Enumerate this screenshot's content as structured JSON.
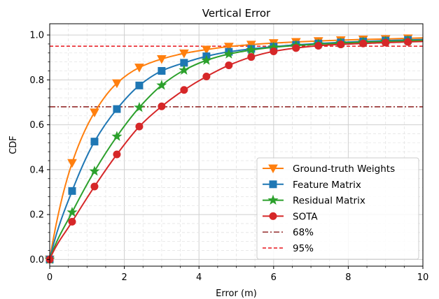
{
  "chart_data": {
    "type": "line",
    "title": "Vertical Error",
    "xlabel": "Error (m)",
    "ylabel": "CDF",
    "xlim": [
      0,
      10
    ],
    "ylim": [
      -0.03,
      1.05
    ],
    "x_ticks": [
      0,
      2,
      4,
      6,
      8,
      10
    ],
    "y_ticks": [
      0.0,
      0.2,
      0.4,
      0.6,
      0.8,
      1.0
    ],
    "x_tick_labels": [
      "0",
      "2",
      "4",
      "6",
      "8",
      "10"
    ],
    "y_tick_labels": [
      "0.0",
      "0.2",
      "0.4",
      "0.6",
      "0.8",
      "1.0"
    ],
    "grid": true,
    "legend_position": "lower-right",
    "series": [
      {
        "name": "Ground-truth Weights",
        "color": "#ff7f0e",
        "marker": "triangle-down",
        "x": [
          0,
          0.6,
          1.2,
          1.8,
          2.4,
          3.0,
          3.6,
          4.2,
          4.8,
          5.4,
          6.0,
          6.6,
          7.2,
          7.8,
          8.4,
          9.0,
          9.6
        ],
        "y": [
          0.0,
          0.43,
          0.655,
          0.785,
          0.855,
          0.893,
          0.918,
          0.935,
          0.948,
          0.957,
          0.964,
          0.969,
          0.973,
          0.977,
          0.98,
          0.982,
          0.985
        ]
      },
      {
        "name": "Feature Matrix",
        "color": "#1f77b4",
        "marker": "square",
        "x": [
          0,
          0.6,
          1.2,
          1.8,
          2.4,
          3.0,
          3.6,
          4.2,
          4.8,
          5.4,
          6.0,
          6.6,
          7.2,
          7.8,
          8.4,
          9.0,
          9.6
        ],
        "y": [
          0.0,
          0.305,
          0.525,
          0.67,
          0.775,
          0.84,
          0.876,
          0.905,
          0.925,
          0.938,
          0.948,
          0.956,
          0.962,
          0.967,
          0.971,
          0.975,
          0.978
        ]
      },
      {
        "name": "Residual Matrix",
        "color": "#2ca02c",
        "marker": "star",
        "x": [
          0,
          0.6,
          1.2,
          1.8,
          2.4,
          3.0,
          3.6,
          4.2,
          4.8,
          5.4,
          6.0,
          6.6,
          7.2,
          7.8,
          8.4,
          9.0,
          9.6
        ],
        "y": [
          0.0,
          0.21,
          0.393,
          0.548,
          0.677,
          0.776,
          0.843,
          0.887,
          0.915,
          0.933,
          0.945,
          0.953,
          0.959,
          0.964,
          0.968,
          0.971,
          0.974
        ]
      },
      {
        "name": "SOTA",
        "color": "#d62728",
        "marker": "circle",
        "x": [
          0,
          0.6,
          1.2,
          1.8,
          2.4,
          3.0,
          3.6,
          4.2,
          4.8,
          5.4,
          6.0,
          6.6,
          7.2,
          7.8,
          8.4,
          9.0,
          9.6
        ],
        "y": [
          0.0,
          0.168,
          0.325,
          0.468,
          0.592,
          0.682,
          0.755,
          0.815,
          0.865,
          0.902,
          0.927,
          0.942,
          0.952,
          0.958,
          0.962,
          0.966,
          0.969
        ]
      }
    ],
    "reference_lines": [
      {
        "name": "68%",
        "y": 0.68,
        "color": "#8b1a1a",
        "style": "dash-dot"
      },
      {
        "name": "95%",
        "y": 0.95,
        "color": "#e8141b",
        "style": "dashed"
      }
    ]
  }
}
